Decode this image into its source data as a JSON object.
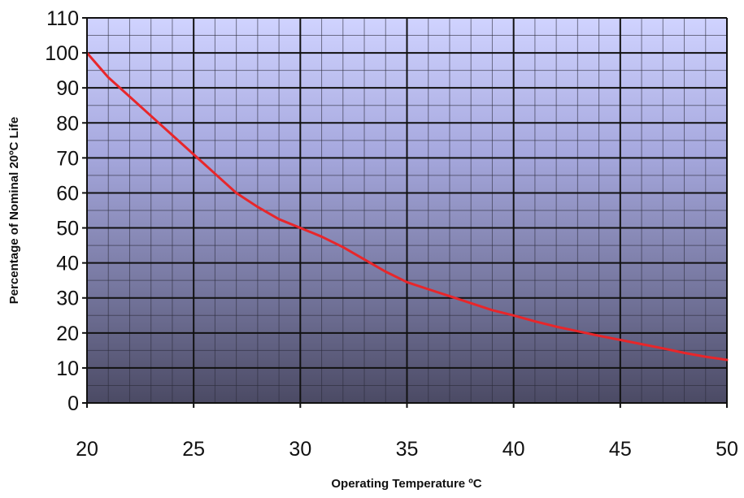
{
  "chart_data": {
    "type": "line",
    "title": "",
    "xlabel": "Operating Temperature ºC",
    "ylabel": "Percentage of Nominal 20ºC Life",
    "xlim": [
      20,
      50
    ],
    "ylim": [
      0,
      110
    ],
    "x_ticks": [
      "20",
      "25",
      "30",
      "35",
      "40",
      "45",
      "50"
    ],
    "y_ticks": [
      "0",
      "10",
      "20",
      "30",
      "40",
      "50",
      "60",
      "70",
      "80",
      "90",
      "100",
      "110"
    ],
    "grid": true,
    "legend": "none",
    "series": [
      {
        "color": "#e8262a",
        "x": [
          20,
          21,
          22,
          23,
          24,
          25,
          26,
          27,
          28,
          29,
          30,
          31,
          32,
          33,
          34,
          35,
          36,
          37,
          38,
          39,
          40,
          41,
          42,
          43,
          44,
          45,
          46,
          47,
          48,
          49,
          50
        ],
        "y": [
          100,
          93,
          87.5,
          82,
          76.5,
          71,
          65.5,
          60,
          56,
          52.5,
          50,
          47.5,
          44.5,
          41,
          37.5,
          34.5,
          32.5,
          30.5,
          28.5,
          26.5,
          25,
          23.3,
          21.8,
          20.5,
          19.2,
          18,
          16.8,
          15.6,
          14.3,
          13.2,
          12.3
        ]
      }
    ]
  }
}
